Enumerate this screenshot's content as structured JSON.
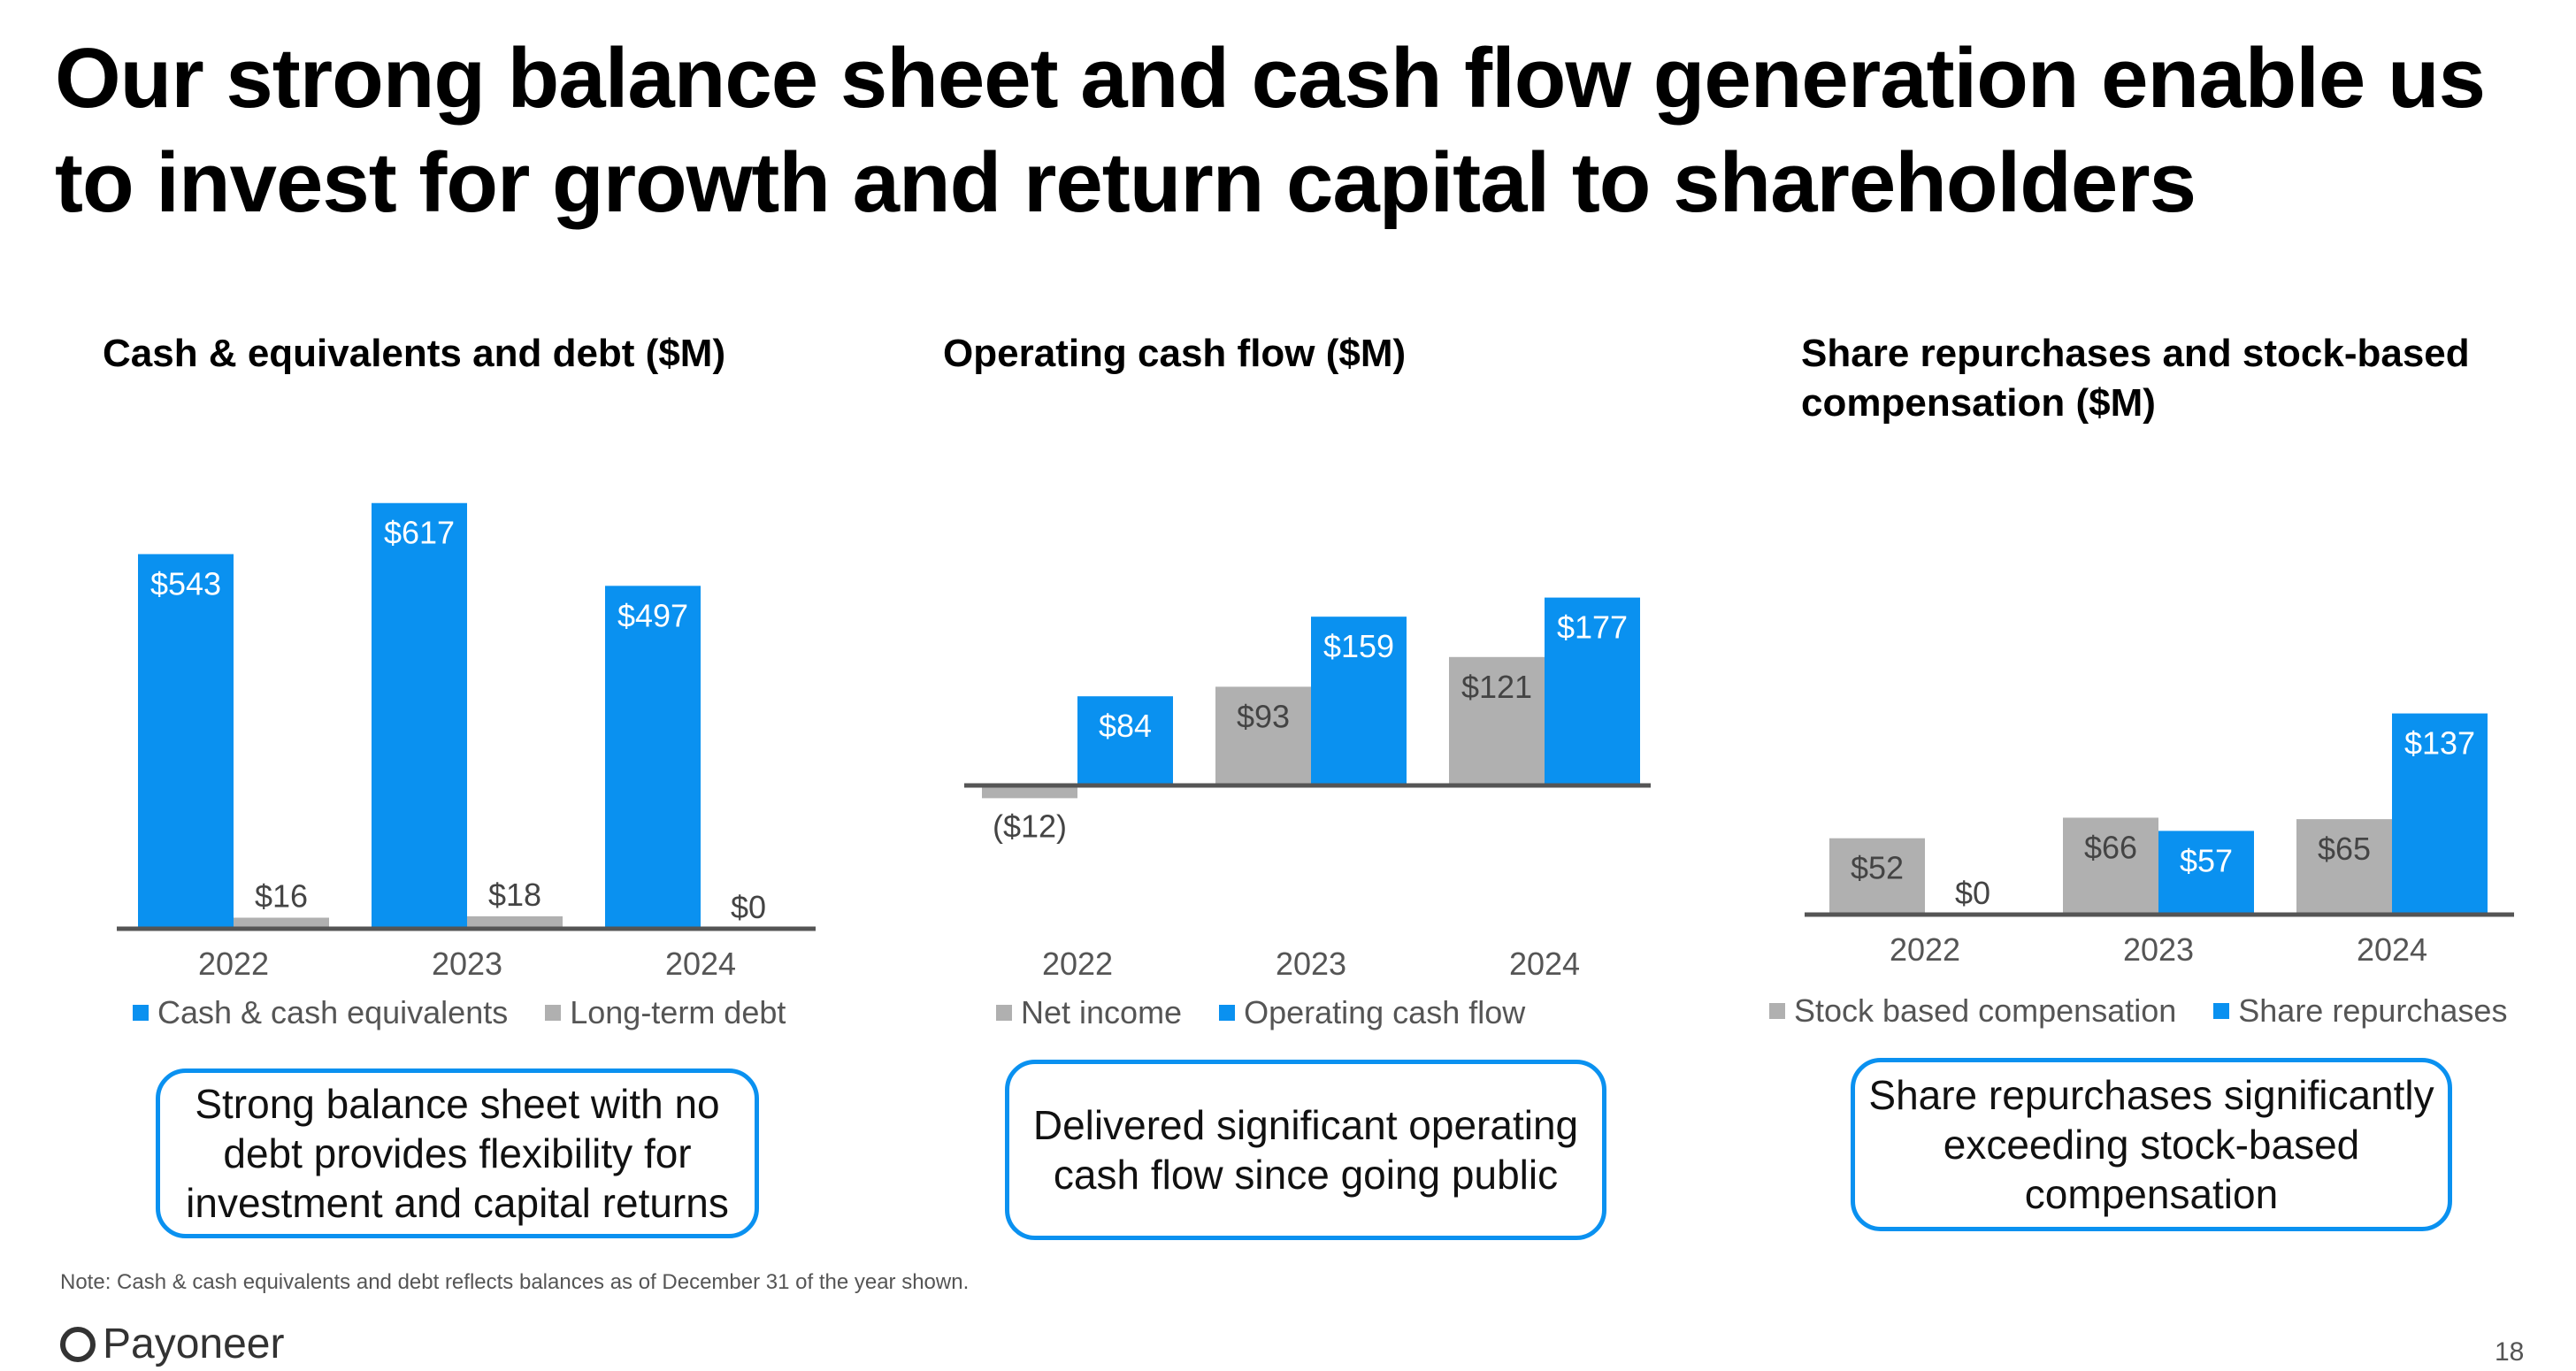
{
  "slide": {
    "title_lines": [
      "Our strong balance sheet and cash flow generation enable us",
      "to invest for growth and return capital to shareholders"
    ],
    "note": "Note: Cash & cash equivalents and debt reflects balances as of December 31 of the year shown.",
    "logo_text": "Payoneer",
    "page_number": "18"
  },
  "colors": {
    "blue": "#0a91f0",
    "gray": "#b0b0b0",
    "axis": "#555555",
    "callout_border": "#0a91f0"
  },
  "callouts": [
    [
      "Strong balance sheet with no",
      "debt provides flexibility for",
      "investment and capital returns"
    ],
    [
      "Delivered significant operating",
      "cash flow since going public"
    ],
    [
      "Share repurchases significantly",
      "exceeding stock-based",
      "compensation"
    ]
  ],
  "chart_data": [
    {
      "type": "bar",
      "title": "Cash & equivalents and debt ($M)",
      "title_lines": [
        "Cash & equivalents and debt ($M)"
      ],
      "categories": [
        "2022",
        "2023",
        "2024"
      ],
      "series": [
        {
          "name": "Cash & cash equivalents",
          "color": "#0a91f0",
          "values": [
            543,
            617,
            497
          ],
          "labels": [
            "$543",
            "$617",
            "$497"
          ],
          "label_color": "#ffffff"
        },
        {
          "name": "Long-term debt",
          "color": "#b0b0b0",
          "values": [
            16,
            18,
            0
          ],
          "labels": [
            "$16",
            "$18",
            "$0"
          ],
          "label_color": "#444444"
        }
      ],
      "legend_position": "bottom"
    },
    {
      "type": "bar",
      "title": "Operating cash flow ($M)",
      "title_lines": [
        "Operating cash flow ($M)"
      ],
      "categories": [
        "2022",
        "2023",
        "2024"
      ],
      "series": [
        {
          "name": "Net income",
          "color": "#b0b0b0",
          "values": [
            -12,
            93,
            121
          ],
          "labels": [
            "($12)",
            "$93",
            "$121"
          ],
          "label_color": "#444444"
        },
        {
          "name": "Operating cash flow",
          "color": "#0a91f0",
          "values": [
            84,
            159,
            177
          ],
          "labels": [
            "$84",
            "$159",
            "$177"
          ],
          "label_color": "#ffffff"
        }
      ],
      "legend_position": "bottom"
    },
    {
      "type": "bar",
      "title": "Share repurchases and stock-based compensation ($M)",
      "title_lines": [
        "Share repurchases and stock-based",
        "compensation ($M)"
      ],
      "categories": [
        "2022",
        "2023",
        "2024"
      ],
      "series": [
        {
          "name": "Stock based compensation",
          "color": "#b0b0b0",
          "values": [
            52,
            66,
            65
          ],
          "labels": [
            "$52",
            "$66",
            "$65"
          ],
          "label_color": "#444444"
        },
        {
          "name": "Share repurchases",
          "color": "#0a91f0",
          "values": [
            0,
            57,
            137
          ],
          "labels": [
            "$0",
            "$57",
            "$137"
          ],
          "label_color": "#ffffff"
        }
      ],
      "legend_position": "bottom"
    }
  ]
}
